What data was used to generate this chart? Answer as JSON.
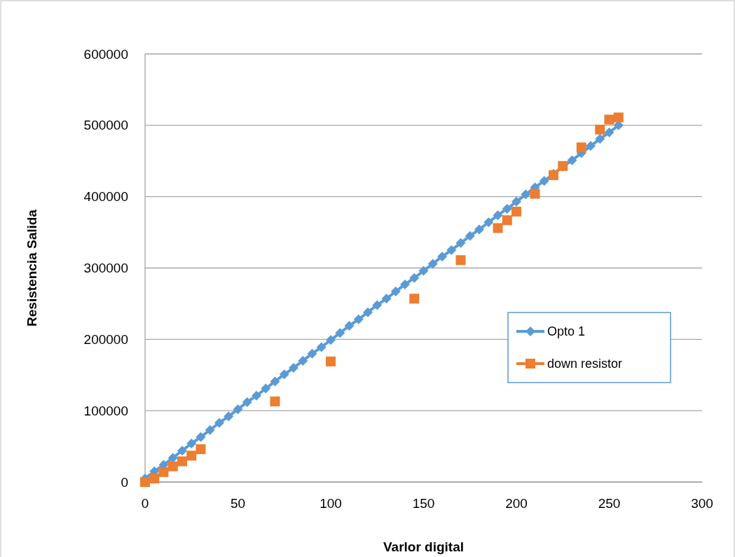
{
  "chart_data": {
    "type": "line",
    "xlabel": "Varlor digital",
    "ylabel": "Resistencia Salida",
    "xlim": [
      0,
      300
    ],
    "xticks": [
      0,
      50,
      100,
      150,
      200,
      250,
      300
    ],
    "ylim": [
      0,
      600000
    ],
    "yticks": [
      0,
      100000,
      200000,
      300000,
      400000,
      500000,
      600000
    ],
    "grid": "y",
    "legend": "right",
    "series": [
      {
        "name": "Opto 1",
        "marker": "diamond",
        "color": "#5b9bd5",
        "x": [
          0,
          5,
          10,
          15,
          20,
          25,
          30,
          35,
          40,
          45,
          50,
          55,
          60,
          65,
          70,
          75,
          80,
          85,
          90,
          95,
          100,
          105,
          110,
          115,
          120,
          125,
          130,
          135,
          140,
          145,
          150,
          155,
          160,
          165,
          170,
          175,
          180,
          185,
          190,
          195,
          200,
          205,
          210,
          215,
          220,
          225,
          230,
          235,
          240,
          245,
          250,
          255
        ],
        "values": [
          5000,
          15000,
          24000,
          34000,
          44000,
          54000,
          63000,
          73000,
          83000,
          92000,
          102000,
          112000,
          121000,
          131000,
          141000,
          151000,
          160000,
          170000,
          180000,
          189000,
          199000,
          209000,
          219000,
          228000,
          238000,
          248000,
          257000,
          267000,
          277000,
          286000,
          296000,
          306000,
          316000,
          325000,
          335000,
          345000,
          354000,
          364000,
          374000,
          383000,
          393000,
          403000,
          413000,
          422000,
          432000,
          442000,
          451000,
          461000,
          471000,
          481000,
          490000,
          500000
        ]
      },
      {
        "name": "down resistor",
        "type": "scatter",
        "marker": "square",
        "color": "#ed7d31",
        "x": [
          0,
          5,
          10,
          15,
          20,
          25,
          30,
          70,
          100,
          145,
          170,
          190,
          195,
          200,
          210,
          220,
          225,
          235,
          245,
          250,
          255
        ],
        "values": [
          0,
          5000,
          14000,
          22000,
          29000,
          37000,
          46000,
          113000,
          169000,
          257000,
          311000,
          356000,
          367000,
          379000,
          404000,
          430000,
          443000,
          469000,
          494000,
          508000,
          511000
        ]
      }
    ]
  }
}
